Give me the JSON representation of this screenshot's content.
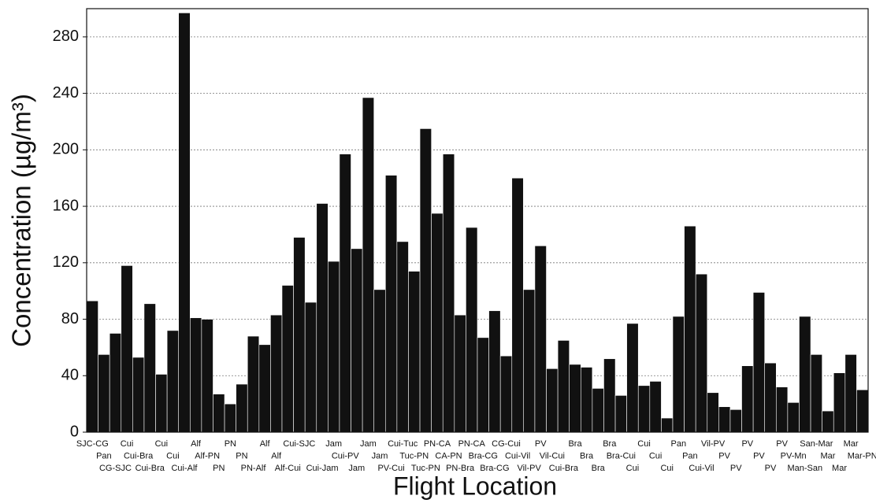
{
  "chart_data": {
    "type": "bar",
    "x_label": "Flight Location",
    "y_label": "Concentration (µg/m³)",
    "categories": [
      "SJC-CG",
      "Pan",
      "CG-SJC",
      "Cui",
      "Cui-Bra",
      "Cui-Bra",
      "Cui",
      "Cui",
      "Cui-Alf",
      "Alf",
      "Alf-PN",
      "PN",
      "PN",
      "PN",
      "PN-Alf",
      "Alf",
      "Alf",
      "Alf-Cui",
      "Cui-SJC",
      null,
      "Cui-Jam",
      "Jam",
      "Cui-PV",
      "Jam",
      "Jam",
      "Jam",
      "PV-Cui",
      "Cui-Tuc",
      "Tuc-PN",
      "Tuc-PN",
      "PN-CA",
      "CA-PN",
      "PN-Bra",
      "PN-CA",
      "Bra-CG",
      "Bra-CG",
      "CG-Cui",
      "Cui-Vil",
      "Vil-PV",
      "PV",
      "Vil-Cui",
      "Cui-Bra",
      "Bra",
      "Bra",
      "Bra",
      "Bra",
      "Bra-Cui",
      "Cui",
      "Cui",
      "Cui",
      "Cui",
      "Pan",
      "Pan",
      "Cui-Vil",
      "Vil-PV",
      "PV",
      "PV",
      "PV",
      "PV",
      "PV",
      "PV",
      "PV-Mn",
      "Man-San",
      "San-Mar",
      "Mar",
      "Mar",
      "Mar",
      "Mar-PN"
    ],
    "values": [
      93,
      55,
      70,
      118,
      53,
      91,
      41,
      72,
      297,
      81,
      80,
      27,
      20,
      34,
      68,
      62,
      83,
      104,
      138,
      92,
      162,
      121,
      197,
      130,
      237,
      101,
      182,
      135,
      114,
      215,
      155,
      197,
      83,
      145,
      67,
      86,
      54,
      180,
      101,
      132,
      45,
      65,
      48,
      46,
      31,
      52,
      26,
      77,
      33,
      36,
      10,
      82,
      146,
      112,
      28,
      18,
      16,
      47,
      99,
      49,
      32,
      21,
      82,
      55,
      15,
      42,
      55,
      30
    ],
    "color": "#111111",
    "ylim": [
      0,
      300
    ],
    "yticks": [
      0,
      40,
      80,
      120,
      160,
      200,
      240,
      280
    ],
    "grid": true
  }
}
